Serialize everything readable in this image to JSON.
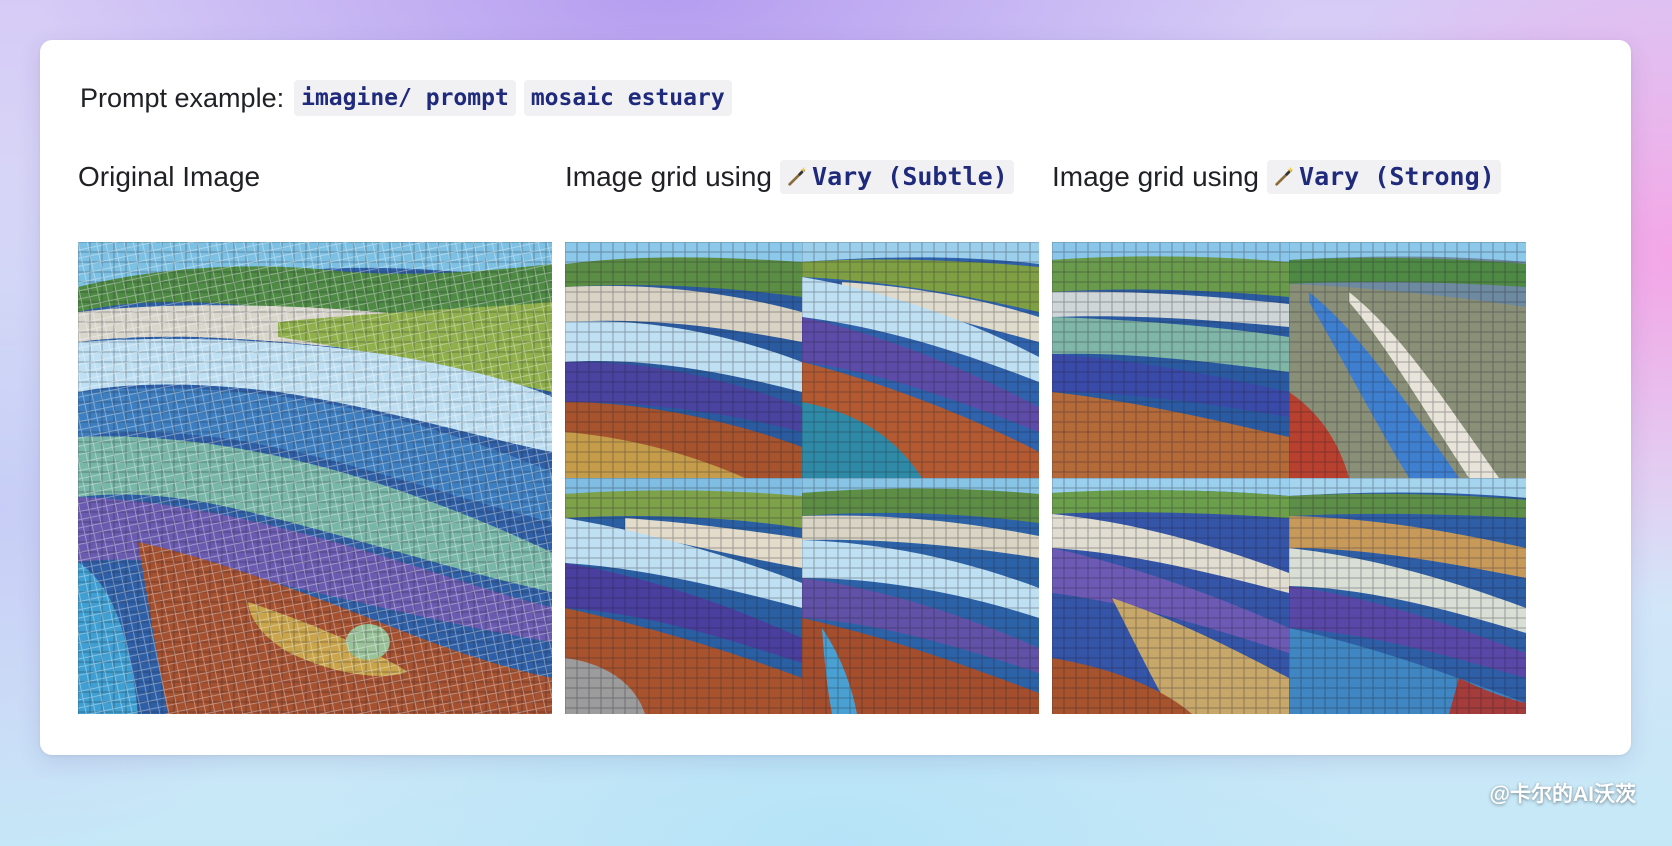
{
  "prompt": {
    "label": "Prompt example:",
    "command": "imagine/ prompt",
    "text": "mosaic estuary"
  },
  "columns": [
    {
      "title": "Original Image",
      "has_code": false,
      "code": ""
    },
    {
      "title": "Image grid using",
      "has_code": true,
      "code": "Vary (Subtle)",
      "icon": "magic-wand-icon"
    },
    {
      "title": "Image grid using",
      "has_code": true,
      "code": "Vary (Strong)",
      "icon": "magic-wand-icon"
    }
  ],
  "watermark": "@卡尔的AI沃茨",
  "colors": {
    "code_text": "#1f2a7c",
    "code_bg": "#f1f1f3",
    "sky": "#6fb3dc",
    "hills": "#5e8f4a",
    "river_light": "#bfe0f2",
    "river_blue": "#2f5fa8",
    "violet": "#6a5bb0",
    "rust": "#a5502f"
  }
}
